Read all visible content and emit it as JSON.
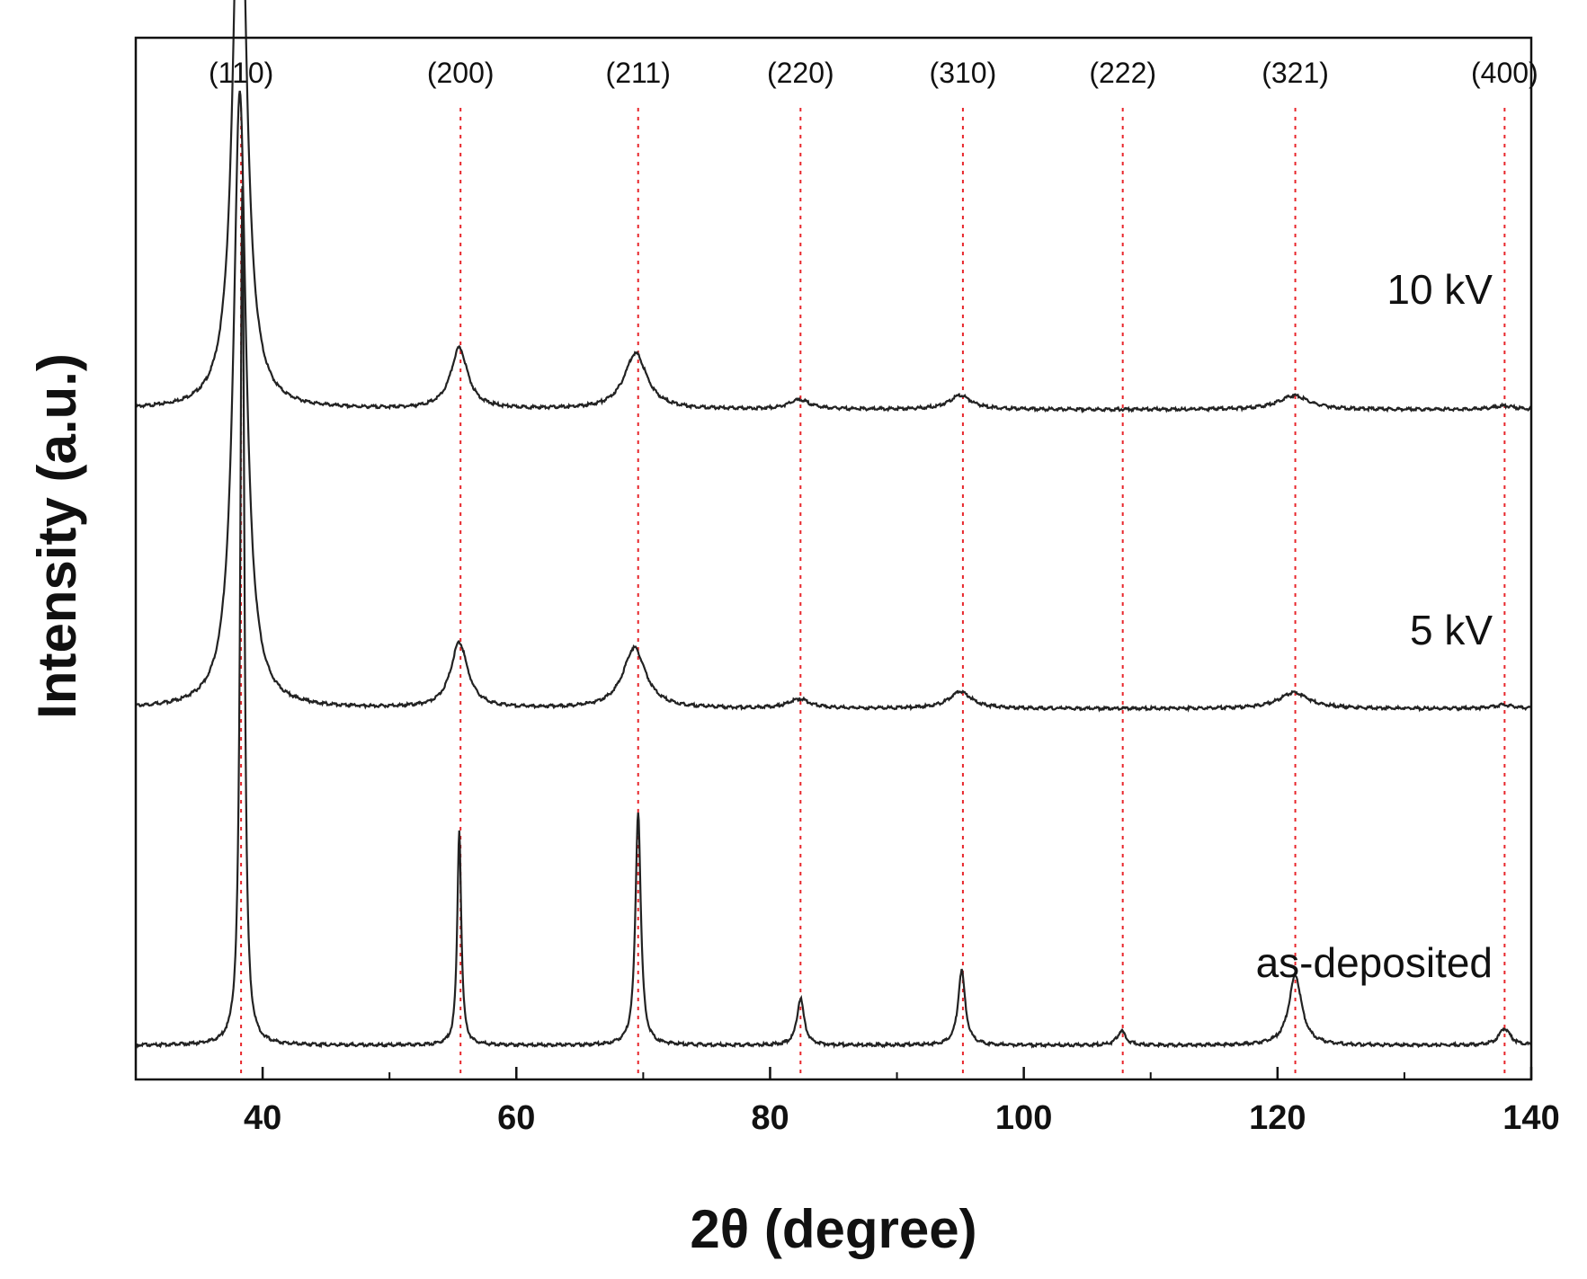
{
  "chart_data": {
    "type": "line",
    "xlabel": "2θ (degree)",
    "ylabel": "Intensity (a.u.)",
    "xlim": [
      30,
      140
    ],
    "x_ticks": [
      40,
      60,
      80,
      100,
      120,
      140
    ],
    "x_minor_ticks": [
      30,
      50,
      70,
      90,
      110,
      130
    ],
    "y_ticks_shown": false,
    "grid": false,
    "reference_color": "#e8262b",
    "line_color": "#222222",
    "reference_peaks": [
      {
        "label": "(110)",
        "x": 38.3
      },
      {
        "label": "(200)",
        "x": 55.6
      },
      {
        "label": "(211)",
        "x": 69.6
      },
      {
        "label": "(220)",
        "x": 82.4
      },
      {
        "label": "(310)",
        "x": 95.2
      },
      {
        "label": "(222)",
        "x": 107.8
      },
      {
        "label": "(321)",
        "x": 121.4
      },
      {
        "label": "(400)",
        "x": 137.9
      }
    ],
    "series": [
      {
        "name": "10 kV",
        "offset": 0.68,
        "peaks": [
          {
            "x": 38.2,
            "height": 0.66,
            "width": 0.9
          },
          {
            "x": 55.5,
            "height": 0.065,
            "width": 1.2
          },
          {
            "x": 69.4,
            "height": 0.06,
            "width": 1.6
          },
          {
            "x": 82.3,
            "height": 0.01,
            "width": 1.5
          },
          {
            "x": 95.0,
            "height": 0.015,
            "width": 1.6
          },
          {
            "x": 121.3,
            "height": 0.015,
            "width": 2.2
          },
          {
            "x": 137.8,
            "height": 0.004,
            "width": 1.5
          }
        ]
      },
      {
        "name": "5 kV",
        "offset": 0.36,
        "peaks": [
          {
            "x": 38.2,
            "height": 0.66,
            "width": 0.9
          },
          {
            "x": 55.5,
            "height": 0.07,
            "width": 1.2
          },
          {
            "x": 69.3,
            "height": 0.065,
            "width": 1.6
          },
          {
            "x": 82.3,
            "height": 0.01,
            "width": 1.5
          },
          {
            "x": 95.0,
            "height": 0.018,
            "width": 1.6
          },
          {
            "x": 121.3,
            "height": 0.017,
            "width": 2.2
          },
          {
            "x": 137.8,
            "height": 0.004,
            "width": 1.5
          }
        ]
      },
      {
        "name": "as-deposited",
        "offset": 0.0,
        "peaks": [
          {
            "x": 38.4,
            "height": 0.92,
            "width": 0.28
          },
          {
            "x": 55.5,
            "height": 0.23,
            "width": 0.28
          },
          {
            "x": 69.6,
            "height": 0.25,
            "width": 0.38
          },
          {
            "x": 82.4,
            "height": 0.05,
            "width": 0.5
          },
          {
            "x": 95.1,
            "height": 0.08,
            "width": 0.5
          },
          {
            "x": 107.7,
            "height": 0.015,
            "width": 0.6
          },
          {
            "x": 121.4,
            "height": 0.075,
            "width": 0.9
          },
          {
            "x": 137.9,
            "height": 0.018,
            "width": 0.8
          }
        ]
      }
    ]
  }
}
